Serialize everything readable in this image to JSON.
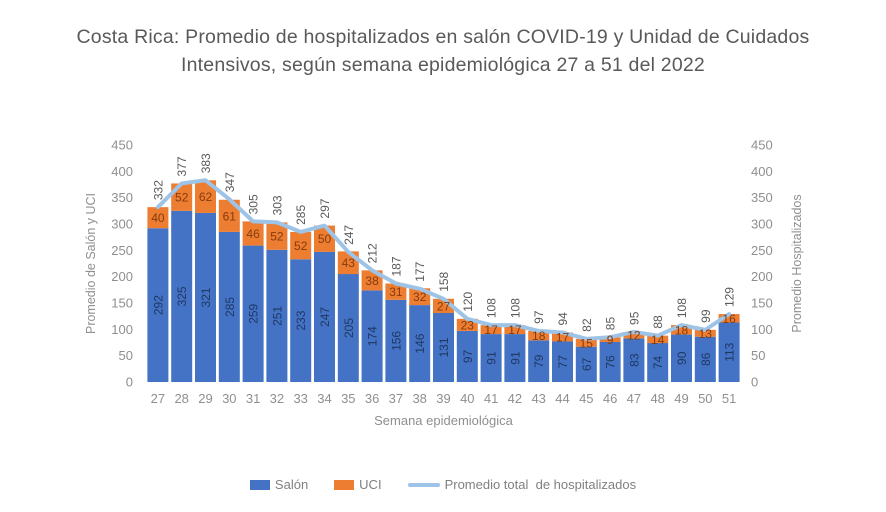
{
  "title": {
    "line1": "Costa Rica: Promedio de hospitalizados en salón COVID-19 y Unidad de Cuidados",
    "line2": "Intensivos, según semana epidemiológica 27 a 51 del 2022"
  },
  "chart_data": {
    "type": "bar",
    "subtype": "stacked-bars-with-total-line",
    "categories": [
      27,
      28,
      29,
      30,
      31,
      32,
      33,
      34,
      35,
      36,
      37,
      38,
      39,
      40,
      41,
      42,
      43,
      44,
      45,
      46,
      47,
      48,
      49,
      50,
      51
    ],
    "series": [
      {
        "name": "Salón",
        "type": "bar",
        "color": "#4472C4",
        "label_color": "#1F3864",
        "values": [
          292,
          325,
          321,
          285,
          259,
          251,
          233,
          247,
          205,
          174,
          156,
          146,
          131,
          97,
          91,
          91,
          79,
          77,
          67,
          76,
          83,
          74,
          90,
          86,
          113
        ]
      },
      {
        "name": "UCI",
        "type": "bar",
        "color": "#ED7D31",
        "label_color": "#843C0C",
        "values": [
          40,
          52,
          62,
          61,
          46,
          52,
          52,
          50,
          43,
          38,
          31,
          32,
          27,
          23,
          17,
          17,
          18,
          17,
          15,
          9,
          12,
          14,
          18,
          13,
          16
        ]
      },
      {
        "name": "Promedio total  de hospitalizados",
        "type": "line",
        "color": "#9DC3E6",
        "label_color": "#595959",
        "values": [
          332,
          377,
          383,
          347,
          305,
          303,
          285,
          297,
          247,
          212,
          187,
          177,
          158,
          120,
          108,
          108,
          97,
          94,
          82,
          85,
          95,
          88,
          108,
          99,
          129
        ]
      }
    ],
    "xlabel": "Semana epidemiológica",
    "ylabel_left": "Promedio de Salón y UCI",
    "ylabel_right": "Promedio Hospitalizados",
    "ylim": [
      0,
      450
    ],
    "ytick_step": 50,
    "grid": false,
    "legend_position": "bottom",
    "axis_text_color": "#8F8F8F",
    "title_color": "#595959"
  }
}
